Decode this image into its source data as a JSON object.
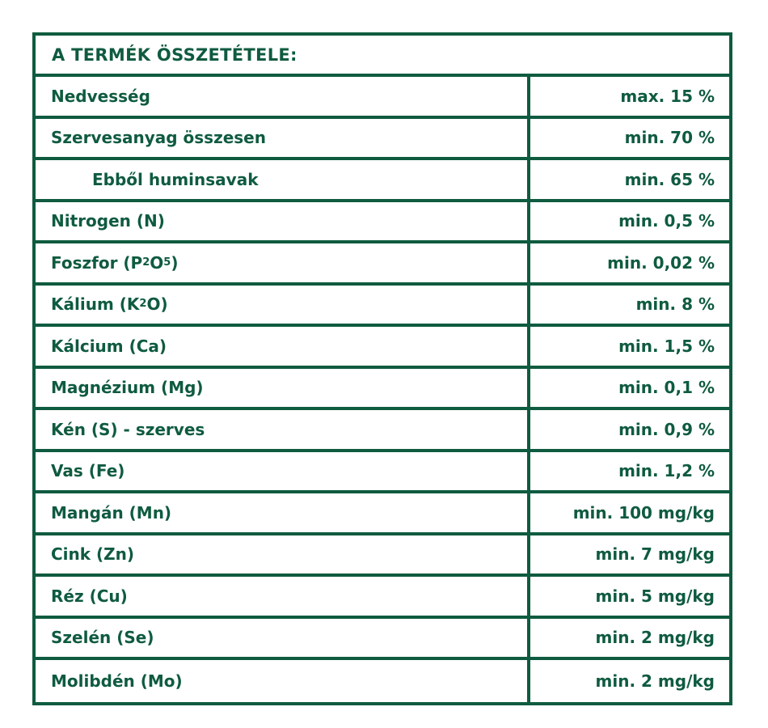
{
  "table": {
    "title": "A TERMÉK ÖSSZETÉTELE:",
    "accent_color": "#0f5b3f",
    "rows": [
      {
        "label": "Nedvesség",
        "value": "max. 15 %"
      },
      {
        "label": "Szervesanyag összesen",
        "value": "min. 70 %"
      },
      {
        "label": "Ebből huminsavak",
        "value": "min. 65 %",
        "indent": true
      },
      {
        "label": "Nitrogen (N)",
        "value": "min. 0,5 %"
      },
      {
        "label_parts": [
          "Foszfor (P",
          "2",
          "O",
          "5",
          ")"
        ],
        "label": "Foszfor (P2O5)",
        "value": "min. 0,02 %"
      },
      {
        "label_parts": [
          "Kálium (K",
          "2",
          "O)"
        ],
        "label": "Kálium (K2O)",
        "value": "min. 8 %"
      },
      {
        "label": "Kálcium (Ca)",
        "value": "min. 1,5 %"
      },
      {
        "label": "Magnézium (Mg)",
        "value": "min. 0,1 %"
      },
      {
        "label": "Kén (S) - szerves",
        "value": "min. 0,9 %"
      },
      {
        "label": "Vas (Fe)",
        "value": "min. 1,2 %"
      },
      {
        "label": "Mangán (Mn)",
        "value": "min. 100 mg/kg"
      },
      {
        "label": "Cink (Zn)",
        "value": "min. 7 mg/kg"
      },
      {
        "label": "Réz (Cu)",
        "value": "min. 5 mg/kg"
      },
      {
        "label": "Szelén (Se)",
        "value": "min. 2 mg/kg"
      },
      {
        "label": "Molibdén (Mo)",
        "value": "min. 2 mg/kg"
      }
    ]
  }
}
